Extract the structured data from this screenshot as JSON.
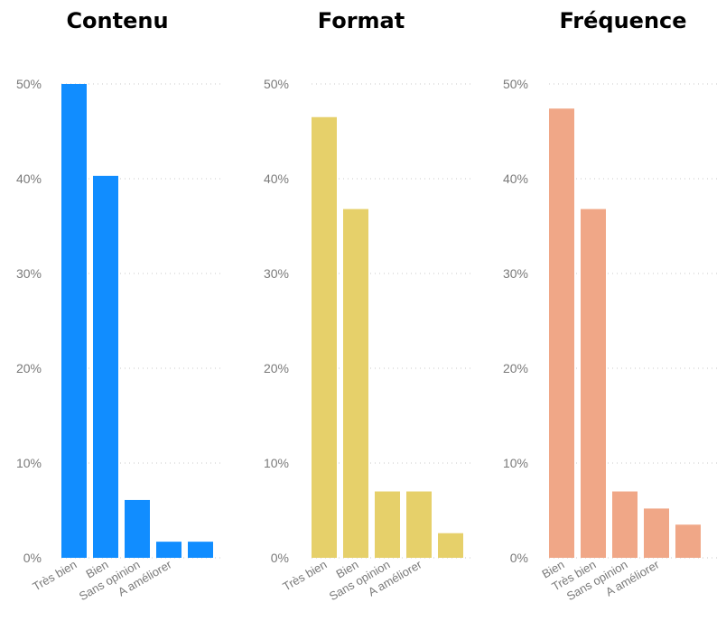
{
  "chart_data": [
    {
      "type": "bar",
      "title": "Contenu",
      "categories": [
        "Très bien",
        "Bien",
        "Sans opinion",
        "A améliorer",
        ""
      ],
      "values": [
        50.0,
        40.3,
        6.1,
        1.7,
        1.7
      ],
      "ylim": [
        0,
        50
      ],
      "yticks": [
        "0%",
        "10%",
        "20%",
        "30%",
        "40%",
        "50%"
      ],
      "color": "#118dff",
      "grid": true
    },
    {
      "type": "bar",
      "title": "Format",
      "categories": [
        "Très bien",
        "Bien",
        "Sans opinion",
        "A améliorer",
        ""
      ],
      "values": [
        46.5,
        36.8,
        7.0,
        7.0,
        2.6
      ],
      "ylim": [
        0,
        50
      ],
      "yticks": [
        "0%",
        "10%",
        "20%",
        "30%",
        "40%",
        "50%"
      ],
      "color": "#e6d06a",
      "grid": true
    },
    {
      "type": "bar",
      "title": "Fréquence",
      "categories": [
        "Bien",
        "Très bien",
        "Sans opinion",
        "A améliorer",
        ""
      ],
      "values": [
        47.4,
        36.8,
        7.0,
        5.2,
        3.5
      ],
      "ylim": [
        0,
        50
      ],
      "yticks": [
        "0%",
        "10%",
        "20%",
        "30%",
        "40%",
        "50%"
      ],
      "color": "#f0a787",
      "grid": true
    }
  ]
}
